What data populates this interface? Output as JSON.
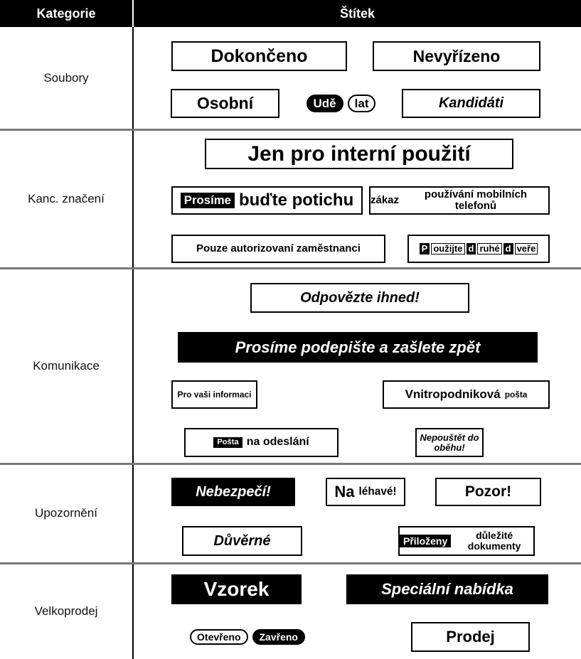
{
  "table": {
    "header": [
      "Kategorie",
      "Štítek"
    ],
    "rows": [
      {
        "category": "Soubory",
        "labels": [
          [
            "Dokončeno"
          ],
          [
            "Nevyřízeno"
          ],
          [
            "Osobní"
          ],
          [
            "Udě",
            "lat"
          ],
          [
            "Kandidáti"
          ]
        ]
      },
      {
        "category": "Kanc. značení",
        "labels": [
          [
            "Jen pro interní použití"
          ],
          [
            "Prosíme",
            "buďte potichu"
          ],
          [
            "zákaz",
            "používání mobilních telefonů"
          ],
          [
            "Pouze autorizovaní zaměstnanci"
          ],
          [
            "P",
            "oužijte",
            "d",
            "ruhé",
            "d",
            "veře"
          ]
        ]
      },
      {
        "category": "Komunikace",
        "labels": [
          [
            "Odpovězte ihned!"
          ],
          [
            "Prosíme podepište a zašlete zpět"
          ],
          [
            "Pro vaši informaci"
          ],
          [
            "Vnitropodniková",
            "pošta"
          ],
          [
            "Pošta",
            "na odeslání"
          ],
          [
            "Nepouštět do oběhu!"
          ]
        ]
      },
      {
        "category": "Upozornění",
        "labels": [
          [
            "Nebezpečí!"
          ],
          [
            "Na",
            "léhavé!"
          ],
          [
            "Pozor!"
          ],
          [
            "Důvěrné"
          ],
          [
            "Přiloženy",
            "důležité dokumenty"
          ]
        ]
      },
      {
        "category": "Velkoprodej",
        "labels": [
          [
            "Vzorek"
          ],
          [
            "Speciální nabídka"
          ],
          [
            "Otevřeno",
            "Zavřeno"
          ],
          [
            "Prodej"
          ]
        ]
      }
    ]
  }
}
